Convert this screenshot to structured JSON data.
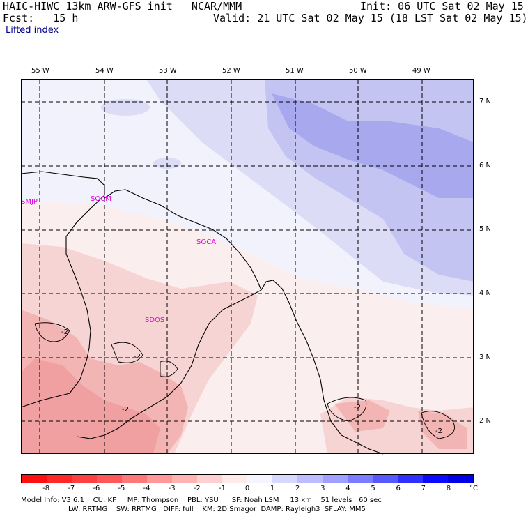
{
  "header": {
    "line1_left": "HAIC-HIWC 13km ARW-GFS init   NCAR/MMM",
    "line1_right": "Init: 06 UTC Sat 02 May 15",
    "line2_left": "Fcst:   15 h",
    "line2_right": "Valid: 21 UTC Sat 02 May 15 (18 LST Sat 02 May 15)",
    "field": "Lifted index"
  },
  "map": {
    "lon_labels": [
      "55 W",
      "54 W",
      "53 W",
      "52 W",
      "51 W",
      "50 W",
      "49 W"
    ],
    "lat_labels": [
      "7 N",
      "6 N",
      "5 N",
      "4 N",
      "3 N",
      "2 N"
    ],
    "stations": [
      "SMJP",
      "SOCM",
      "SOCA",
      "SDOS"
    ],
    "contour_labels": [
      "-2",
      "-2",
      "-2",
      "-2",
      "-2"
    ],
    "colors": {
      "land_border": "#000000",
      "station": "#e000e0",
      "grid": "#000000"
    }
  },
  "colorbar": {
    "ticks": [
      "-8",
      "-7",
      "-6",
      "-5",
      "-4",
      "-3",
      "-2",
      "-1",
      "0",
      "1",
      "2",
      "3",
      "4",
      "5",
      "6",
      "7",
      "8"
    ],
    "unit": "°C",
    "colors": [
      "#ff1010",
      "#ff2828",
      "#ff4040",
      "#ff5858",
      "#ff7878",
      "#ff9898",
      "#ffb4b4",
      "#ffd0d0",
      "#ffeaea",
      "#f5f5ff",
      "#d8d8ff",
      "#bcbcff",
      "#a0a0ff",
      "#7c7cff",
      "#5858ff",
      "#3030ff",
      "#0a0aff",
      "#0000e6"
    ]
  },
  "model_info": {
    "line1": "Model Info: V3.6.1    CU: KF     MP: Thompson    PBL: YSU      SF: Noah LSM     13 km    51 levels   60 sec",
    "line2": "LW: RRTMG    SW: RRTMG   DIFF: full    KM: 2D Smagor  DAMP: Rayleigh3  SFLAY: MM5"
  }
}
